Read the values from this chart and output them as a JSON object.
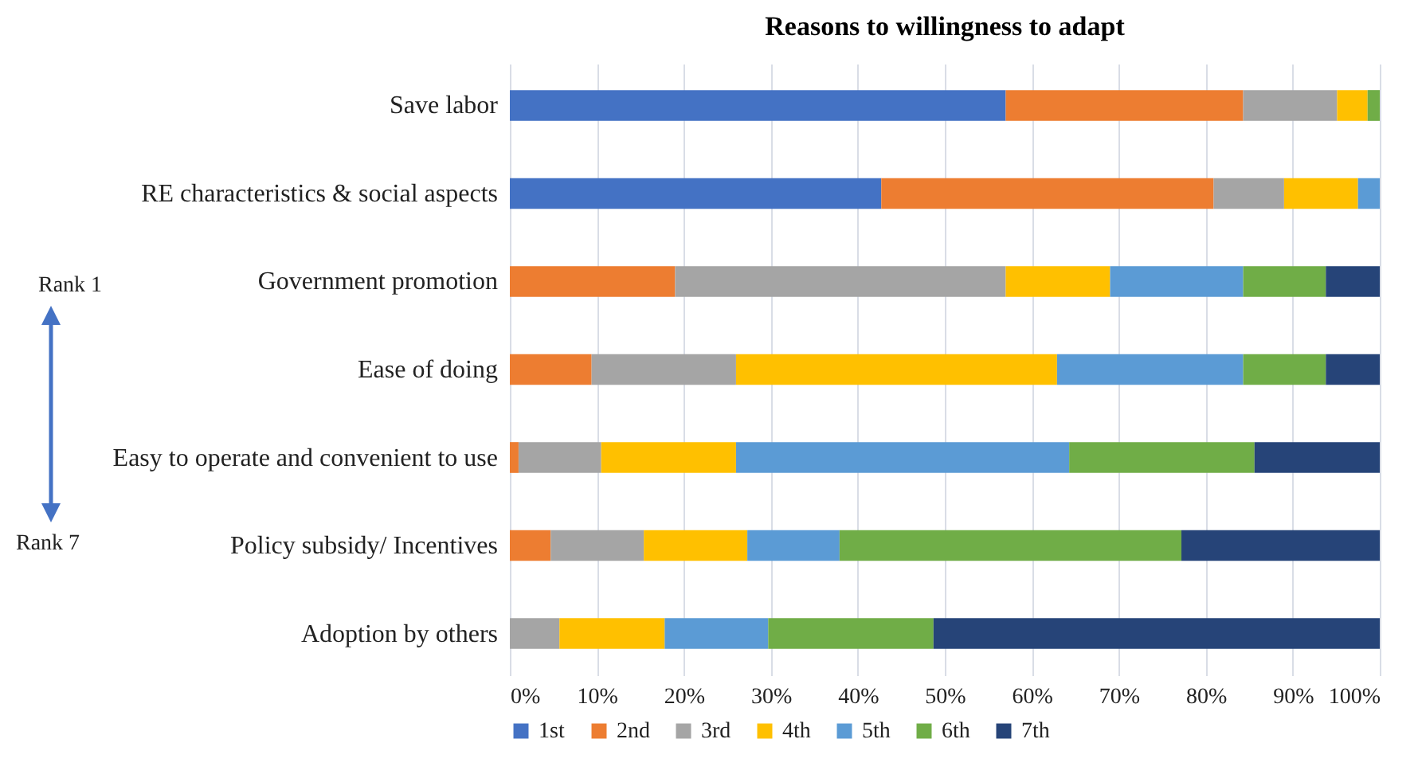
{
  "chart_data": {
    "type": "bar",
    "orientation": "horizontal",
    "stacked": true,
    "title": "Reasons to willingness to adapt",
    "categories": [
      "Save labor",
      "RE characteristics & social aspects",
      "Government promotion",
      "Ease of doing",
      "Easy to operate and convenient to use",
      "Policy subsidy/ Incentives",
      "Adoption by others"
    ],
    "series": [
      {
        "name": "1st",
        "color": "#4472c4",
        "values": [
          57,
          42.7,
          null,
          null,
          null,
          null,
          null
        ]
      },
      {
        "name": "2nd",
        "color": "#ed7d31",
        "values": [
          27.3,
          38.2,
          19,
          9.4,
          1,
          4.7,
          null
        ]
      },
      {
        "name": "3rd",
        "color": "#a5a5a5",
        "values": [
          10.8,
          8.1,
          38,
          16.6,
          9.5,
          10.7,
          5.7
        ]
      },
      {
        "name": "4th",
        "color": "#ffc000",
        "values": [
          3.5,
          8.5,
          12,
          36.9,
          15.5,
          11.9,
          12.1
        ]
      },
      {
        "name": "5th",
        "color": "#5b9bd5",
        "values": [
          null,
          2.5,
          15.3,
          21.4,
          38.3,
          10.6,
          11.9
        ]
      },
      {
        "name": "6th",
        "color": "#70ad47",
        "values": [
          1.4,
          null,
          9.5,
          9.5,
          21.3,
          39.3,
          19
        ]
      },
      {
        "name": "7th",
        "color": "#264478",
        "values": [
          null,
          null,
          6.2,
          6.2,
          14.4,
          22.8,
          51.3
        ]
      }
    ],
    "xlim": [
      0,
      100
    ],
    "xticks": [
      {
        "value": 0,
        "label": "0%"
      },
      {
        "value": 10,
        "label": "10%"
      },
      {
        "value": 20,
        "label": "20%"
      },
      {
        "value": 30,
        "label": "30%"
      },
      {
        "value": 40,
        "label": "40%"
      },
      {
        "value": 50,
        "label": "50%"
      },
      {
        "value": 60,
        "label": "60%"
      },
      {
        "value": 70,
        "label": "70%"
      },
      {
        "value": 80,
        "label": "80%"
      },
      {
        "value": 90,
        "label": "90%"
      },
      {
        "value": 100,
        "label": "100%"
      }
    ],
    "grid": "x",
    "legend": "bottom",
    "annotations": [
      "Rank 1",
      "Rank 7"
    ]
  }
}
